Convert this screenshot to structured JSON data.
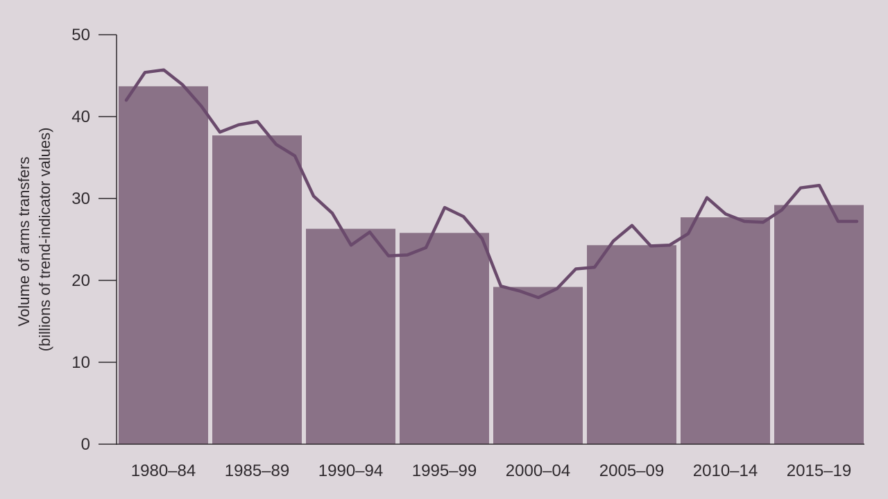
{
  "chart_data": {
    "type": "bar",
    "categories": [
      "1980–84",
      "1985–89",
      "1990–94",
      "1995–99",
      "2000–04",
      "2005–09",
      "2010–14",
      "2015–19"
    ],
    "values": [
      43.7,
      37.7,
      26.3,
      25.8,
      19.2,
      24.3,
      27.7,
      29.2
    ],
    "ylabel": [
      "Volume of arms transfers",
      "(billions of trend-indicator values)"
    ],
    "ylim": [
      0,
      50
    ],
    "yticks": [
      0,
      10,
      20,
      30,
      40,
      50
    ],
    "grid": false,
    "legend": "none",
    "line_series": {
      "x": [
        1980,
        1981,
        1982,
        1983,
        1984,
        1985,
        1986,
        1987,
        1988,
        1989,
        1990,
        1991,
        1992,
        1993,
        1994,
        1995,
        1996,
        1997,
        1998,
        1999,
        2000,
        2001,
        2002,
        2003,
        2004,
        2005,
        2006,
        2007,
        2008,
        2009,
        2010,
        2011,
        2012,
        2013,
        2014,
        2015,
        2016,
        2017,
        2018,
        2019
      ],
      "values": [
        42.0,
        45.4,
        45.7,
        43.9,
        41.3,
        38.1,
        39.0,
        39.4,
        36.6,
        35.2,
        30.3,
        28.2,
        24.3,
        25.9,
        23.0,
        23.1,
        24.0,
        28.9,
        27.8,
        25.1,
        19.3,
        18.7,
        17.9,
        19.0,
        21.4,
        21.6,
        24.8,
        26.7,
        24.2,
        24.3,
        25.7,
        30.1,
        28.1,
        27.2,
        27.1,
        28.6,
        31.3,
        31.6,
        27.2,
        27.2
      ]
    },
    "colors": {
      "background": "#ddd6db",
      "bar": "#8a7287",
      "line": "#6a4a6c",
      "axis": "#2f2a2e",
      "text": "#2f2a2e"
    }
  }
}
